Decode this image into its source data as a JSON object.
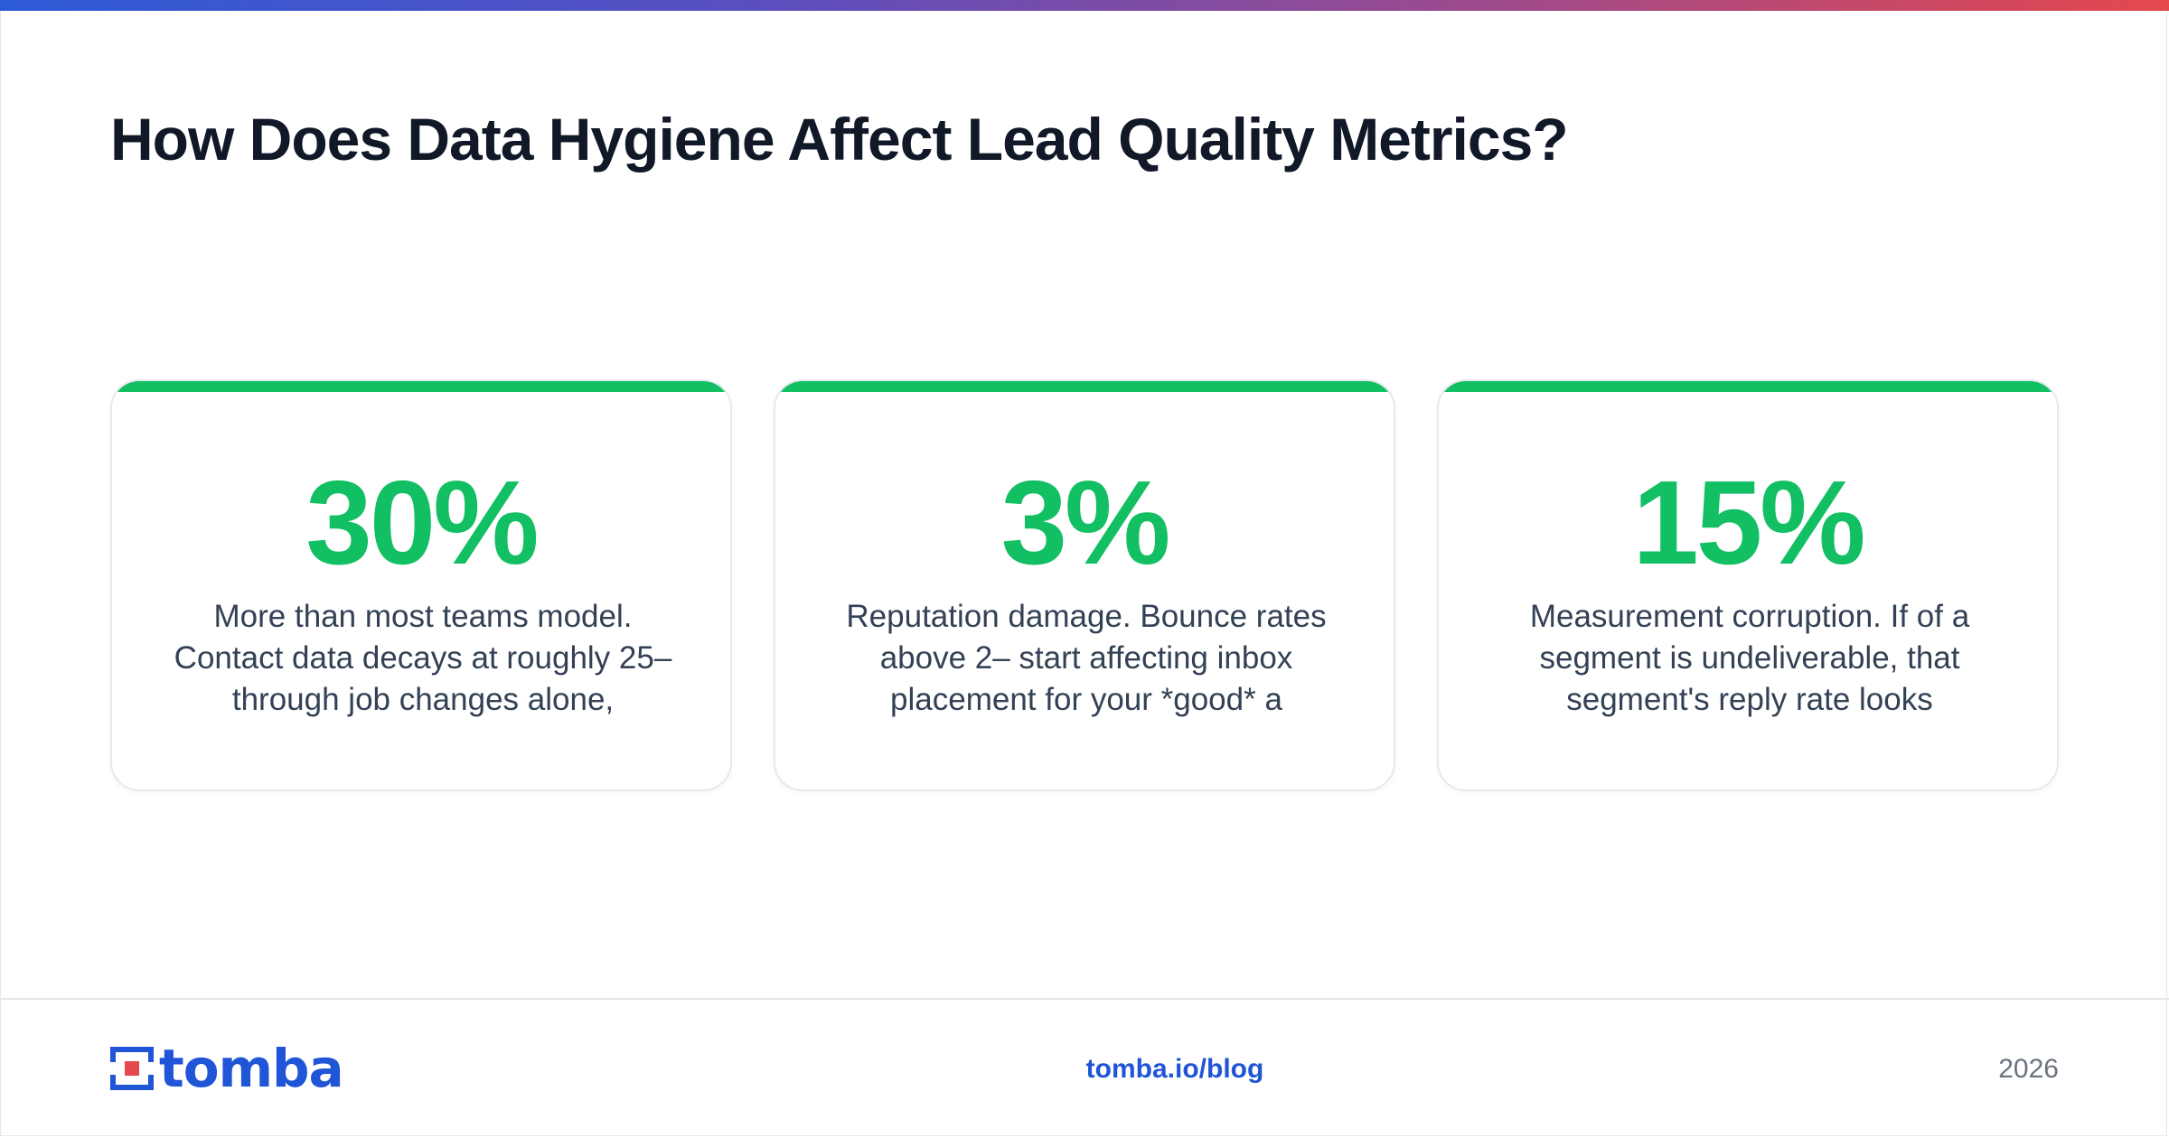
{
  "title": "How Does Data Hygiene Affect Lead Quality Metrics?",
  "colors": {
    "accent_green": "#12bf63",
    "brand_blue": "#1f55d6",
    "brand_red": "#e5484d",
    "title": "#111827"
  },
  "cards": [
    {
      "stat": "30%",
      "lines": [
        "More than most teams model.",
        "Contact data decays at roughly 25–",
        "through job changes alone,"
      ]
    },
    {
      "stat": "3%",
      "lines": [
        "Reputation damage. Bounce rates",
        "above 2– start affecting inbox",
        "placement for your *good* a"
      ]
    },
    {
      "stat": "15%",
      "lines": [
        "Measurement corruption. If of a",
        "segment is undeliverable, that",
        "segment's reply rate looks"
      ]
    }
  ],
  "footer": {
    "logo_text": "tomba",
    "logo_icon": "tomba-logo-icon",
    "link": "tomba.io/blog",
    "year": "2026"
  }
}
